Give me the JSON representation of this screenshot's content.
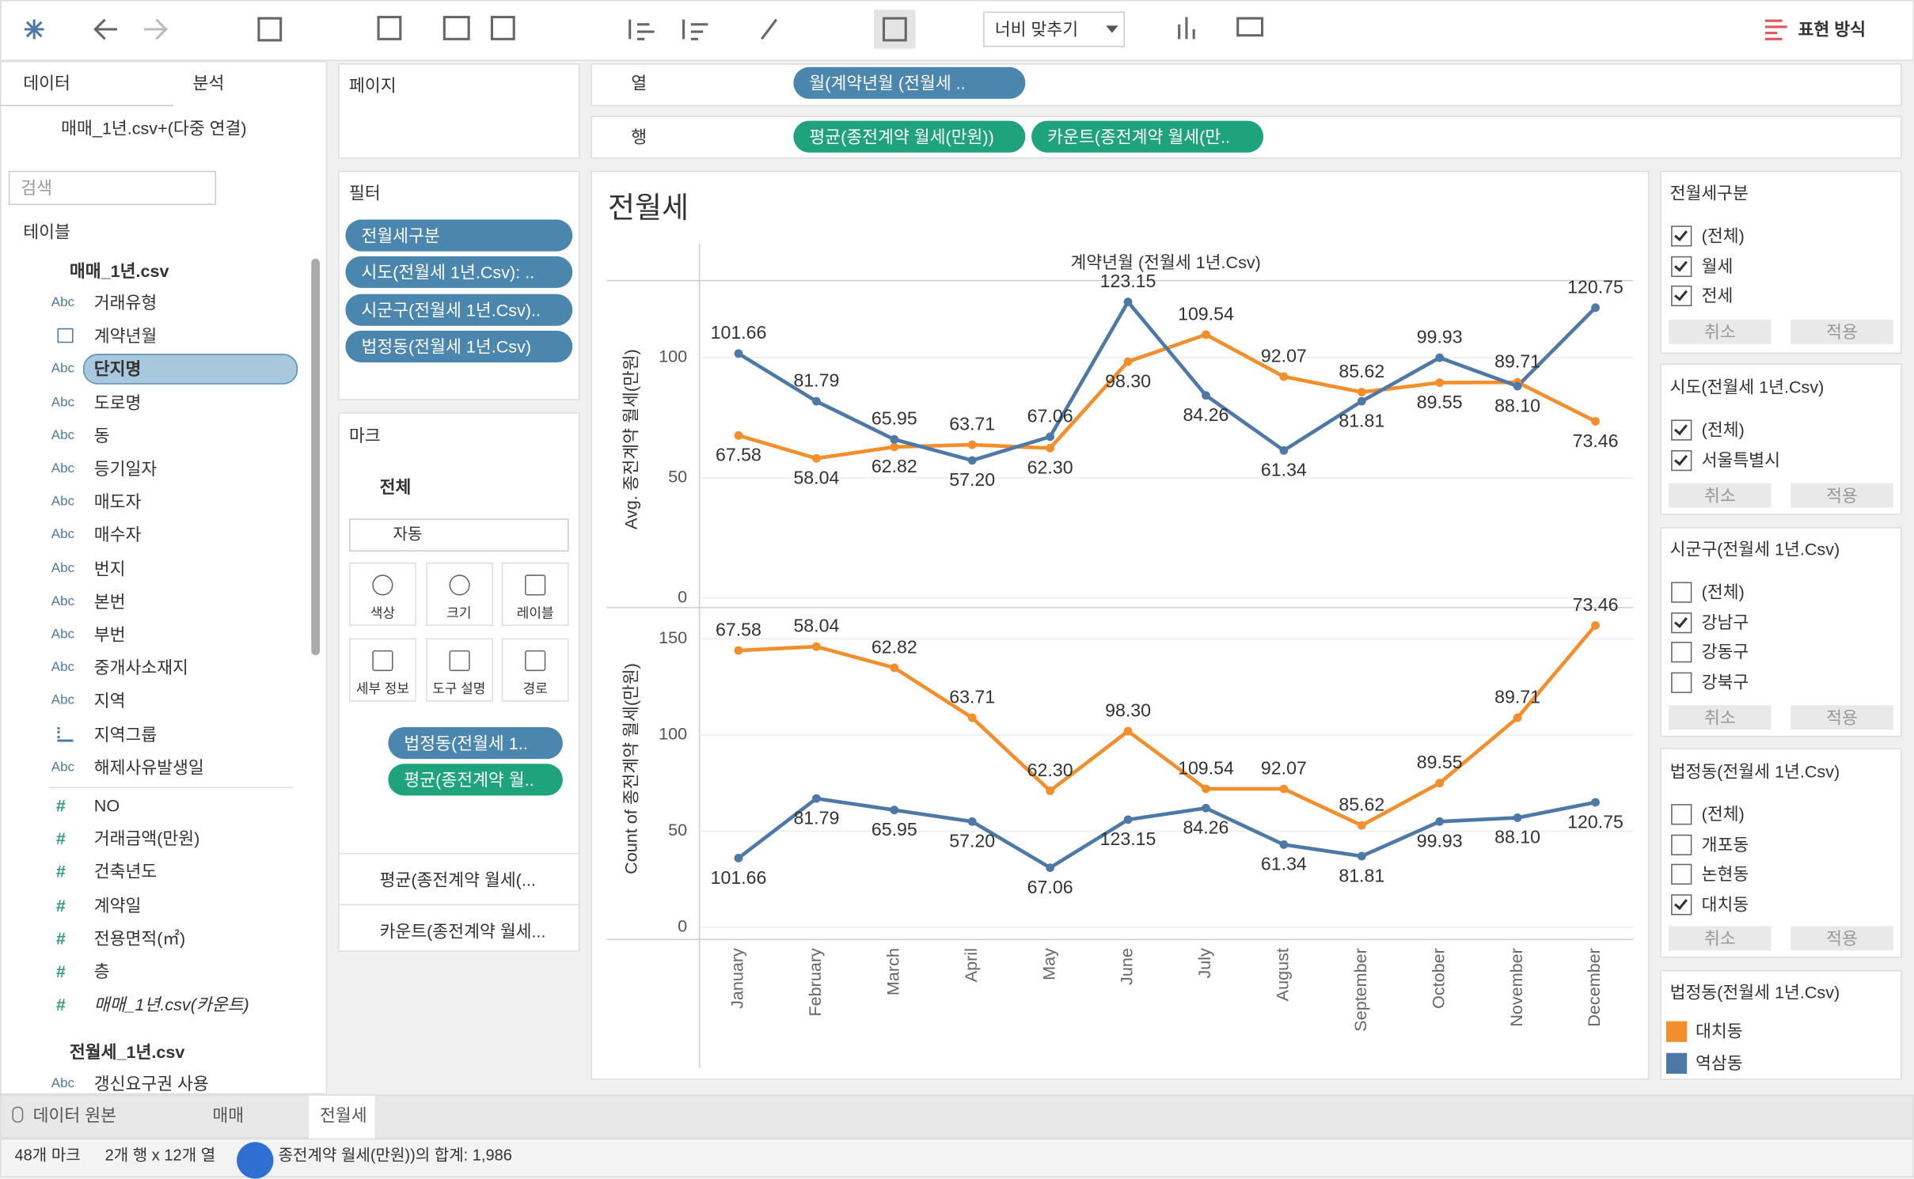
{
  "toolbar": {
    "fit": "너비 맞추기",
    "show_me": "표현 방식"
  },
  "data_pane": {
    "tabs": [
      "데이터",
      "분석"
    ],
    "source": "매매_1년.csv+(다중 연결)",
    "search": "검색",
    "tables_label": "테이블",
    "table1": "매매_1년.csv",
    "fields": [
      "거래유형",
      "계약년월",
      "단지명",
      "도로명",
      "동",
      "등기일자",
      "매도자",
      "매수자",
      "번지",
      "본번",
      "부번",
      "중개사소재지",
      "지역",
      "지역그룹",
      "해제사유발생일"
    ],
    "field_icons": [
      "Abc",
      "date",
      "Abc",
      "Abc",
      "Abc",
      "Abc",
      "Abc",
      "Abc",
      "Abc",
      "Abc",
      "Abc",
      "Abc",
      "Abc",
      "group",
      "Abc"
    ],
    "selected": 2,
    "measures": [
      "NO",
      "거래금액(만원)",
      "건축년도",
      "계약일",
      "전용면적(㎡)",
      "층",
      "매매_1년.csv(카운트)"
    ],
    "measure_icon": "#",
    "table2": "전월세_1년.csv",
    "table2_fields": [
      "갱신요구권 사용"
    ]
  },
  "pages": "페이지",
  "filters": {
    "title": "필터",
    "pills": [
      "전월세구분",
      "시도(전월세 1년.Csv): ..",
      "시군구(전월세 1년.Csv)..",
      "법정동(전월세 1년.Csv)"
    ]
  },
  "marks": {
    "title": "마크",
    "all": "전체",
    "mark_type": "자동",
    "buttons": [
      "색상",
      "크기",
      "레이블",
      "세부 정보",
      "도구 설명",
      "경로"
    ],
    "color_pill": "법정동(전월세 1..",
    "label_pill": "평균(종전계약 월..",
    "sub_cards": [
      "평균(종전계약 월세(...",
      "카운트(종전계약 월세..."
    ]
  },
  "shelves": {
    "columns": "열",
    "column_pills": [
      "월(계약년월 (전월세 .."
    ],
    "rows": "행",
    "row_pills": [
      "평균(종전계약 월세(만원))",
      "카운트(종전계약 월세(만.."
    ]
  },
  "chart_data": [
    {
      "type": "line",
      "title": "전월세",
      "xlabel": "계약년월 (전월세 1년.Csv)",
      "ylabel": "Avg. 종전계약 월세(만원)",
      "legend_title": "법정동(전월세 1년.Csv)",
      "categories": [
        "January",
        "February",
        "March",
        "April",
        "May",
        "June",
        "July",
        "August",
        "September",
        "October",
        "November",
        "December"
      ],
      "ylim": [
        0,
        132
      ],
      "yticks": [
        0,
        50,
        100
      ],
      "grid": true,
      "series": [
        {
          "name": "대치동",
          "color": "#f28e2b",
          "values": [
            67.58,
            58.04,
            62.82,
            63.71,
            62.3,
            98.3,
            109.54,
            92.07,
            85.62,
            89.55,
            89.71,
            73.46
          ],
          "value_labels": [
            "67.58",
            "58.04",
            "62.82",
            "63.71",
            "62.30",
            "98.30",
            "109.54",
            "92.07",
            "85.62",
            "89.55",
            "89.71",
            "73.46"
          ]
        },
        {
          "name": "역삼동",
          "color": "#4e79a7",
          "values": [
            101.66,
            81.79,
            65.95,
            57.2,
            67.06,
            123.15,
            84.26,
            61.34,
            81.81,
            99.93,
            88.1,
            120.75
          ],
          "value_labels": [
            "101.66",
            "81.79",
            "65.95",
            "57.20",
            "67.06",
            "123.15",
            "84.26",
            "61.34",
            "81.81",
            "99.93",
            "88.10",
            "120.75"
          ]
        }
      ]
    },
    {
      "type": "line",
      "ylabel": "Count of 종전계약 월세(만원)",
      "ylim": [
        0,
        165
      ],
      "yticks": [
        0,
        50,
        100,
        150
      ],
      "grid": true,
      "series": [
        {
          "color": "#f28e2b",
          "values": [
            144,
            146,
            135,
            109,
            71,
            102,
            72,
            72,
            53,
            75,
            109,
            157
          ]
        },
        {
          "color": "#4e79a7",
          "values": [
            36,
            67,
            61,
            55,
            31,
            56,
            62,
            43,
            37,
            55,
            57,
            65
          ]
        }
      ]
    }
  ],
  "filter_cards": [
    {
      "title": "전월세구분",
      "items": [
        {
          "label": "(전체)",
          "checked": true
        },
        {
          "label": "월세",
          "checked": true
        },
        {
          "label": "전세",
          "checked": true
        }
      ]
    },
    {
      "title": "시도(전월세 1년.Csv)",
      "items": [
        {
          "label": "(전체)",
          "checked": true
        },
        {
          "label": "서울특별시",
          "checked": true
        }
      ]
    },
    {
      "title": "시군구(전월세 1년.Csv)",
      "items": [
        {
          "label": "(전체)",
          "checked": false
        },
        {
          "label": "강남구",
          "checked": true
        },
        {
          "label": "강동구",
          "checked": false
        },
        {
          "label": "강북구",
          "checked": false
        }
      ]
    },
    {
      "title": "법정동(전월세 1년.Csv)",
      "items": [
        {
          "label": "(전체)",
          "checked": false
        },
        {
          "label": "개포동",
          "checked": false
        },
        {
          "label": "논현동",
          "checked": false
        },
        {
          "label": "대치동",
          "checked": true
        }
      ]
    }
  ],
  "filter_buttons": {
    "cancel": "취소",
    "apply": "적용"
  },
  "sheet_tabs": {
    "source": "데이터 원본",
    "tabs": [
      "매매",
      "전월세"
    ],
    "active": 1
  },
  "status": {
    "marks": "48개 마크",
    "size": "2개 행 x 12개 열",
    "sum": "종전계약 월세(만원))의 합계: 1,986"
  }
}
